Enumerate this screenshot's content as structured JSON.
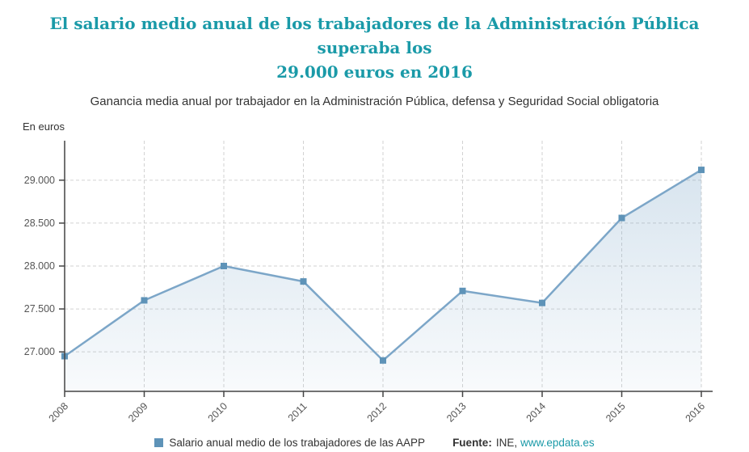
{
  "colors": {
    "accent": "#1a9aa8"
  },
  "header": {
    "title": "El salario medio anual de los trabajadores de la Administración Pública superaba los\n29.000 euros en 2016",
    "subtitle": "Ganancia media anual por trabajador en la Administración Pública, defensa y Seguridad Social obligatoria"
  },
  "chart_data": {
    "type": "area",
    "title": "El salario medio anual de los trabajadores de la Administración Pública superaba los 29.000 euros en 2016",
    "subtitle": "Ganancia media anual por trabajador en la Administración Pública, defensa y Seguridad Social obligatoria",
    "unit_label": "En euros",
    "x": [
      "2008",
      "2009",
      "2010",
      "2011",
      "2012",
      "2013",
      "2014",
      "2015",
      "2016"
    ],
    "series": [
      {
        "name": "Salario anual medio de los trabajadores de las AAPP",
        "values": [
          26950,
          27600,
          28000,
          27820,
          26900,
          27710,
          27570,
          28560,
          29120
        ]
      }
    ],
    "y_ticks": [
      {
        "value": 27000,
        "label": "27.000"
      },
      {
        "value": 27500,
        "label": "27.500"
      },
      {
        "value": 28000,
        "label": "28.000"
      },
      {
        "value": 28500,
        "label": "28.500"
      },
      {
        "value": 29000,
        "label": "29.000"
      }
    ],
    "ylim": [
      26540,
      29460
    ],
    "grid": "dashed",
    "legend_position": "bottom",
    "colors": {
      "line": "#7ca6c8",
      "marker": "#5e93b8",
      "grid": "#d2d2d2",
      "axis": "#444444",
      "tick_text": "#555555"
    }
  },
  "footer": {
    "legend_label": "Salario anual medio de los trabajadores de las AAPP",
    "source_prefix": "Fuente:",
    "source_name": "INE,",
    "source_link": "www.epdata.es"
  }
}
